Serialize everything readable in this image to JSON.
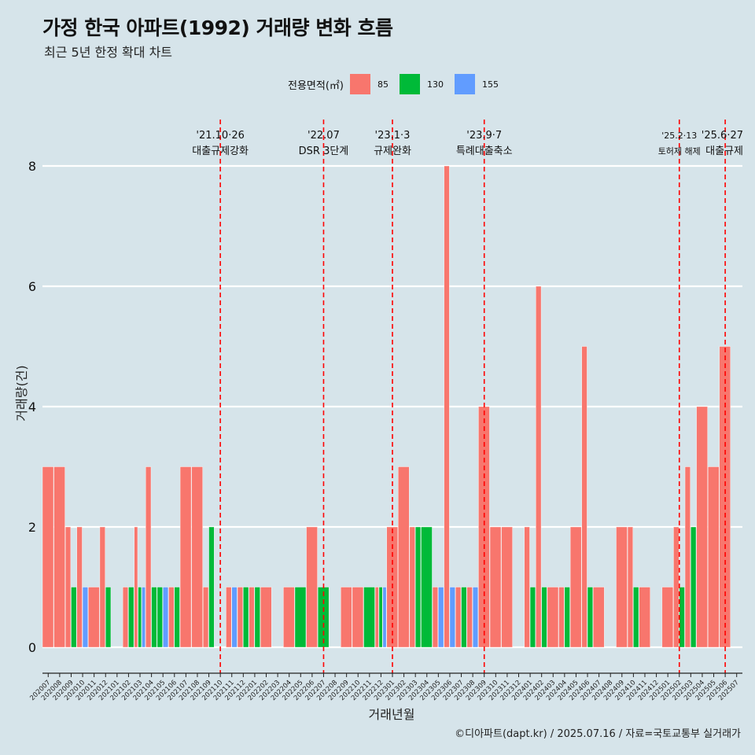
{
  "title": "가정 한국 아파트(1992) 거래량 변화 흐름",
  "subtitle": "최근 5년 한정 확대 차트",
  "caption": "©디아파트(dapt.kr) / 2025.07.16 / 자료=국토교통부 실거래가",
  "legend": {
    "title": "전용면적(㎡)",
    "items": [
      {
        "label": "85",
        "color": "#f8766d"
      },
      {
        "label": "130",
        "color": "#00ba38"
      },
      {
        "label": "155",
        "color": "#619cff"
      }
    ]
  },
  "chart_data": {
    "type": "bar",
    "xlabel": "거래년월",
    "ylabel": "거래량(건)",
    "ylim": [
      0,
      8
    ],
    "yticks": [
      0,
      2,
      4,
      6,
      8
    ],
    "grid": true,
    "legend_position": "top",
    "categories": [
      "202007",
      "202008",
      "202009",
      "202010",
      "202011",
      "202012",
      "202101",
      "202102",
      "202103",
      "202104",
      "202105",
      "202106",
      "202107",
      "202108",
      "202109",
      "202110",
      "202111",
      "202112",
      "202201",
      "202202",
      "202203",
      "202204",
      "202205",
      "202206",
      "202207",
      "202208",
      "202209",
      "202210",
      "202211",
      "202212",
      "202301",
      "202302",
      "202303",
      "202304",
      "202305",
      "202306",
      "202307",
      "202308",
      "202309",
      "202310",
      "202311",
      "202312",
      "202401",
      "202402",
      "202403",
      "202404",
      "202405",
      "202406",
      "202407",
      "202408",
      "202409",
      "202410",
      "202411",
      "202412",
      "202501",
      "202502",
      "202503",
      "202504",
      "202505",
      "202506",
      "202507"
    ],
    "series": [
      {
        "name": "85",
        "color": "#f8766d",
        "values": [
          3,
          3,
          2,
          2,
          1,
          2,
          0,
          1,
          2,
          3,
          0,
          1,
          3,
          3,
          1,
          0,
          1,
          1,
          1,
          1,
          0,
          1,
          0,
          2,
          0,
          0,
          1,
          1,
          0,
          1,
          2,
          3,
          2,
          0,
          1,
          8,
          1,
          1,
          4,
          2,
          2,
          0,
          2,
          6,
          1,
          1,
          2,
          5,
          1,
          0,
          2,
          2,
          1,
          0,
          1,
          2,
          3,
          4,
          3,
          5,
          0
        ]
      },
      {
        "name": "130",
        "color": "#00ba38",
        "values": [
          0,
          0,
          1,
          0,
          0,
          1,
          0,
          1,
          1,
          1,
          1,
          1,
          0,
          0,
          2,
          0,
          0,
          1,
          1,
          0,
          0,
          0,
          1,
          0,
          1,
          0,
          0,
          0,
          1,
          1,
          0,
          0,
          2,
          2,
          0,
          0,
          1,
          0,
          0,
          0,
          0,
          0,
          1,
          1,
          0,
          1,
          0,
          1,
          0,
          0,
          0,
          1,
          0,
          0,
          0,
          1,
          2,
          0,
          0,
          0,
          0
        ]
      },
      {
        "name": "155",
        "color": "#619cff",
        "values": [
          0,
          0,
          0,
          1,
          0,
          0,
          0,
          0,
          1,
          0,
          1,
          0,
          0,
          0,
          0,
          0,
          1,
          0,
          0,
          0,
          0,
          0,
          0,
          0,
          0,
          0,
          0,
          0,
          0,
          1,
          0,
          0,
          0,
          0,
          1,
          1,
          0,
          1,
          0,
          0,
          0,
          0,
          0,
          0,
          0,
          0,
          0,
          0,
          0,
          0,
          0,
          0,
          0,
          0,
          0,
          0,
          0,
          0,
          0,
          0,
          0
        ]
      }
    ],
    "annotations": [
      {
        "month": "202110",
        "date": "'21.10·26",
        "text": "대출규제강화"
      },
      {
        "month": "202207",
        "date": "'22.07",
        "text": "DSR 3단계"
      },
      {
        "month": "202301",
        "date": "'23.1·3",
        "text": "규제완화"
      },
      {
        "month": "202309",
        "date": "'23.9·7",
        "text": "특례대출축소"
      },
      {
        "month": "202502",
        "date": "'25.2·13",
        "text": "토허제 해제"
      },
      {
        "month": "202506",
        "date": "'25.6·27",
        "text": "대출규제"
      }
    ]
  }
}
